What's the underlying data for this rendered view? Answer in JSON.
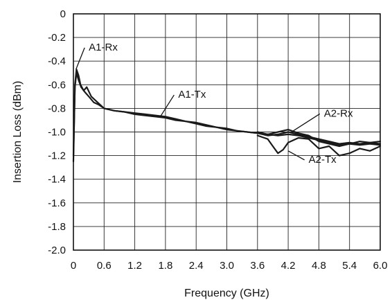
{
  "chart_data": {
    "type": "line",
    "title": "",
    "xlabel": "Frequency (GHz)",
    "ylabel": "Insertion Loss (dBm)",
    "xlim": [
      0,
      6.0
    ],
    "ylim": [
      -2.0,
      0
    ],
    "x_ticks": [
      "0",
      "0.6",
      "1.2",
      "1.8",
      "2.4",
      "3.0",
      "3.6",
      "4.2",
      "4.8",
      "5.4",
      "6.0"
    ],
    "y_ticks": [
      "0",
      "-0.2",
      "-0.4",
      "-0.6",
      "-0.8",
      "-1.0",
      "-1.2",
      "-1.4",
      "-1.6",
      "-1.8",
      "-2.0"
    ],
    "grid": true,
    "line_color": "#1a1a1a",
    "series": [
      {
        "name": "A1-Rx",
        "x": [
          0.0,
          0.03,
          0.06,
          0.1,
          0.14,
          0.2,
          0.26,
          0.35,
          0.45,
          0.6,
          0.8,
          1.0,
          1.2,
          1.4,
          1.6,
          1.8,
          2.0,
          2.2,
          2.4,
          2.6,
          2.8,
          3.0,
          3.2,
          3.4,
          3.6,
          3.8,
          4.0,
          4.2,
          4.4,
          4.6,
          4.8,
          5.0,
          5.2,
          5.4,
          5.6,
          5.8,
          6.0
        ],
        "y": [
          -1.25,
          -0.6,
          -0.47,
          -0.52,
          -0.6,
          -0.65,
          -0.62,
          -0.7,
          -0.74,
          -0.8,
          -0.82,
          -0.83,
          -0.84,
          -0.85,
          -0.86,
          -0.87,
          -0.89,
          -0.91,
          -0.92,
          -0.94,
          -0.96,
          -0.97,
          -0.99,
          -1.0,
          -1.01,
          -1.03,
          -1.02,
          -1.0,
          -1.02,
          -1.04,
          -1.06,
          -1.08,
          -1.1,
          -1.09,
          -1.1,
          -1.09,
          -1.1
        ]
      },
      {
        "name": "A1-Tx",
        "x": [
          0.0,
          0.03,
          0.06,
          0.1,
          0.15,
          0.22,
          0.3,
          0.4,
          0.5,
          0.6,
          0.8,
          1.0,
          1.2,
          1.4,
          1.6,
          1.8,
          2.0,
          2.2,
          2.4,
          2.6,
          2.8,
          3.0,
          3.2,
          3.4,
          3.6,
          3.8,
          4.0,
          4.2,
          4.4,
          4.6,
          4.8,
          5.0,
          5.2,
          5.4,
          5.6,
          5.8,
          6.0
        ],
        "y": [
          -1.2,
          -0.62,
          -0.5,
          -0.56,
          -0.62,
          -0.66,
          -0.7,
          -0.75,
          -0.77,
          -0.8,
          -0.82,
          -0.83,
          -0.85,
          -0.86,
          -0.87,
          -0.88,
          -0.9,
          -0.91,
          -0.93,
          -0.95,
          -0.96,
          -0.98,
          -0.99,
          -1.0,
          -1.01,
          -1.02,
          -1.03,
          -1.02,
          -1.03,
          -1.05,
          -1.07,
          -1.09,
          -1.11,
          -1.1,
          -1.11,
          -1.1,
          -1.11
        ]
      },
      {
        "name": "A2-Rx",
        "x": [
          3.6,
          3.8,
          4.0,
          4.2,
          4.4,
          4.6,
          4.8,
          5.0,
          5.2,
          5.4,
          5.6,
          5.8,
          6.0
        ],
        "y": [
          -1.0,
          -1.02,
          -1.0,
          -0.98,
          -1.01,
          -1.03,
          -1.08,
          -1.1,
          -1.12,
          -1.1,
          -1.08,
          -1.09,
          -1.08
        ]
      },
      {
        "name": "A2-Tx",
        "x": [
          3.6,
          3.8,
          3.9,
          4.0,
          4.1,
          4.2,
          4.3,
          4.4,
          4.6,
          4.8,
          5.0,
          5.2,
          5.4,
          5.6,
          5.8,
          6.0
        ],
        "y": [
          -1.03,
          -1.06,
          -1.12,
          -1.18,
          -1.15,
          -1.09,
          -1.07,
          -1.05,
          -1.06,
          -1.14,
          -1.12,
          -1.2,
          -1.18,
          -1.14,
          -1.16,
          -1.12
        ]
      }
    ],
    "annotations": [
      {
        "text": "A1-Rx",
        "x": 0.3,
        "y": -0.31,
        "arrow_x": 0.05,
        "arrow_y": -0.47
      },
      {
        "text": "A1-Tx",
        "x": 2.05,
        "y": -0.71,
        "arrow_x": 1.7,
        "arrow_y": -0.87
      },
      {
        "text": "A2-Rx",
        "x": 4.9,
        "y": -0.87,
        "arrow_x": 4.3,
        "arrow_y": -0.99
      },
      {
        "text": "A2-Tx",
        "x": 4.6,
        "y": -1.26,
        "arrow_x": 4.2,
        "arrow_y": -1.16
      }
    ]
  }
}
